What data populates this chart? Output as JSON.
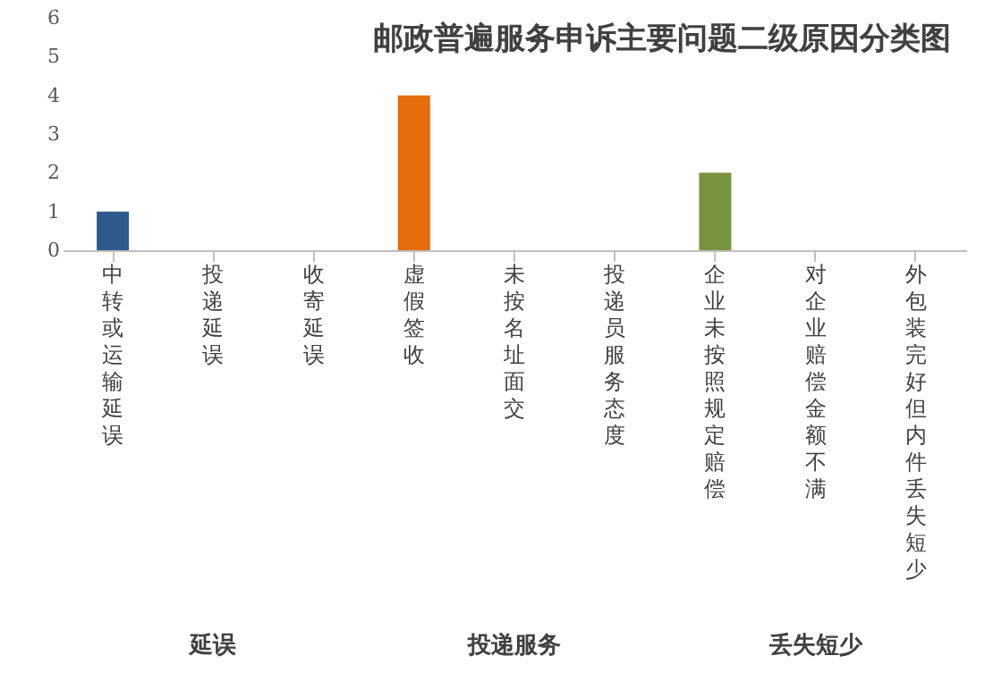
{
  "chart_data": {
    "type": "bar",
    "title": "邮政普遍服务申诉主要问题二级原因分类图",
    "categories": [
      "中转或运输延误",
      "投递延误",
      "收寄延误",
      "虚假签收",
      "未按名址面交",
      "投递员服务态度",
      "企业未按照规定赔偿",
      "对企业赔偿金额不满",
      "外包装完好但内件丢失短少"
    ],
    "values": [
      1,
      0,
      0,
      4,
      0,
      0,
      2,
      0,
      0
    ],
    "colors": [
      "#2e5a8e",
      "#2e5a8e",
      "#2e5a8e",
      "#e46c0a",
      "#e46c0a",
      "#e46c0a",
      "#77933c",
      "#77933c",
      "#77933c"
    ],
    "ylim": [
      0,
      6
    ],
    "yticks": [
      0,
      1,
      2,
      3,
      4,
      5,
      6
    ],
    "annotations": [
      "延误",
      "投递服务",
      "丢失短少"
    ]
  }
}
